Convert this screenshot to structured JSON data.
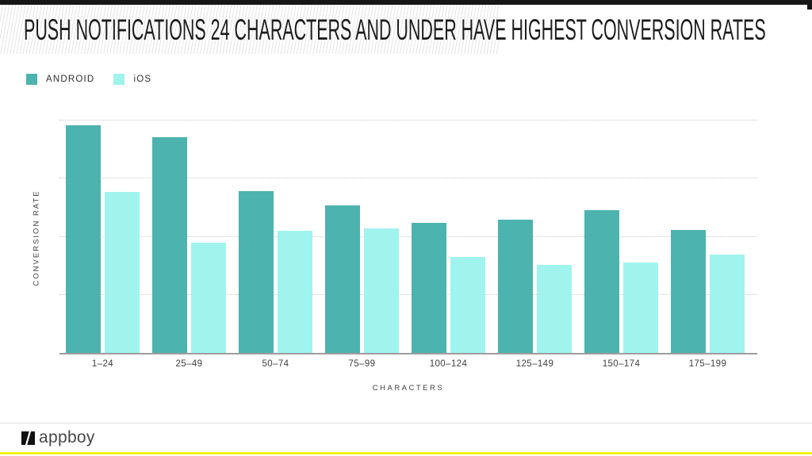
{
  "slide": {
    "title": "PUSH NOTIFICATIONS 24 CHARACTERS AND UNDER HAVE HIGHEST CONVERSION RATES"
  },
  "legend": [
    {
      "label": "ANDROID",
      "color": "#4cb3ae"
    },
    {
      "label": "iOS",
      "color": "#a0f4ed"
    }
  ],
  "chart_data": {
    "type": "bar",
    "title": "PUSH NOTIFICATIONS 24 CHARACTERS AND UNDER HAVE HIGHEST CONVERSION RATES",
    "categories": [
      "1–24",
      "25–49",
      "50–74",
      "75–99",
      "100–124",
      "125–149",
      "150–174",
      "175–199"
    ],
    "series": [
      {
        "name": "ANDROID",
        "color": "#4cb3ae",
        "values": [
          3.92,
          3.72,
          2.78,
          2.54,
          2.24,
          2.3,
          2.46,
          2.11
        ]
      },
      {
        "name": "iOS",
        "color": "#a0f4ed",
        "values": [
          2.77,
          1.9,
          2.1,
          2.14,
          1.65,
          1.51,
          1.56,
          1.69
        ]
      }
    ],
    "xlabel": "CHARACTERS",
    "ylabel": "CONVERSION RATE",
    "ylim": [
      0,
      4.3
    ],
    "gridlines": [
      1,
      2,
      3,
      4
    ],
    "y_tick_labels_visible": false,
    "grid_style": "dotted-horizontal",
    "legend_position": "top-left",
    "note": "No numeric y tick labels shown; values estimated in gridline units from bar heights."
  },
  "footer": {
    "brand": "appboy"
  },
  "colors": {
    "android": "#4cb3ae",
    "ios": "#a0f4ed",
    "top_bar": "#161616",
    "bottom_strip": "#f2f414",
    "title_text": "#1d1d1d",
    "axis_text": "#404040",
    "gridline": "#c9c9c9",
    "axis_line": "#9e9e9e"
  }
}
